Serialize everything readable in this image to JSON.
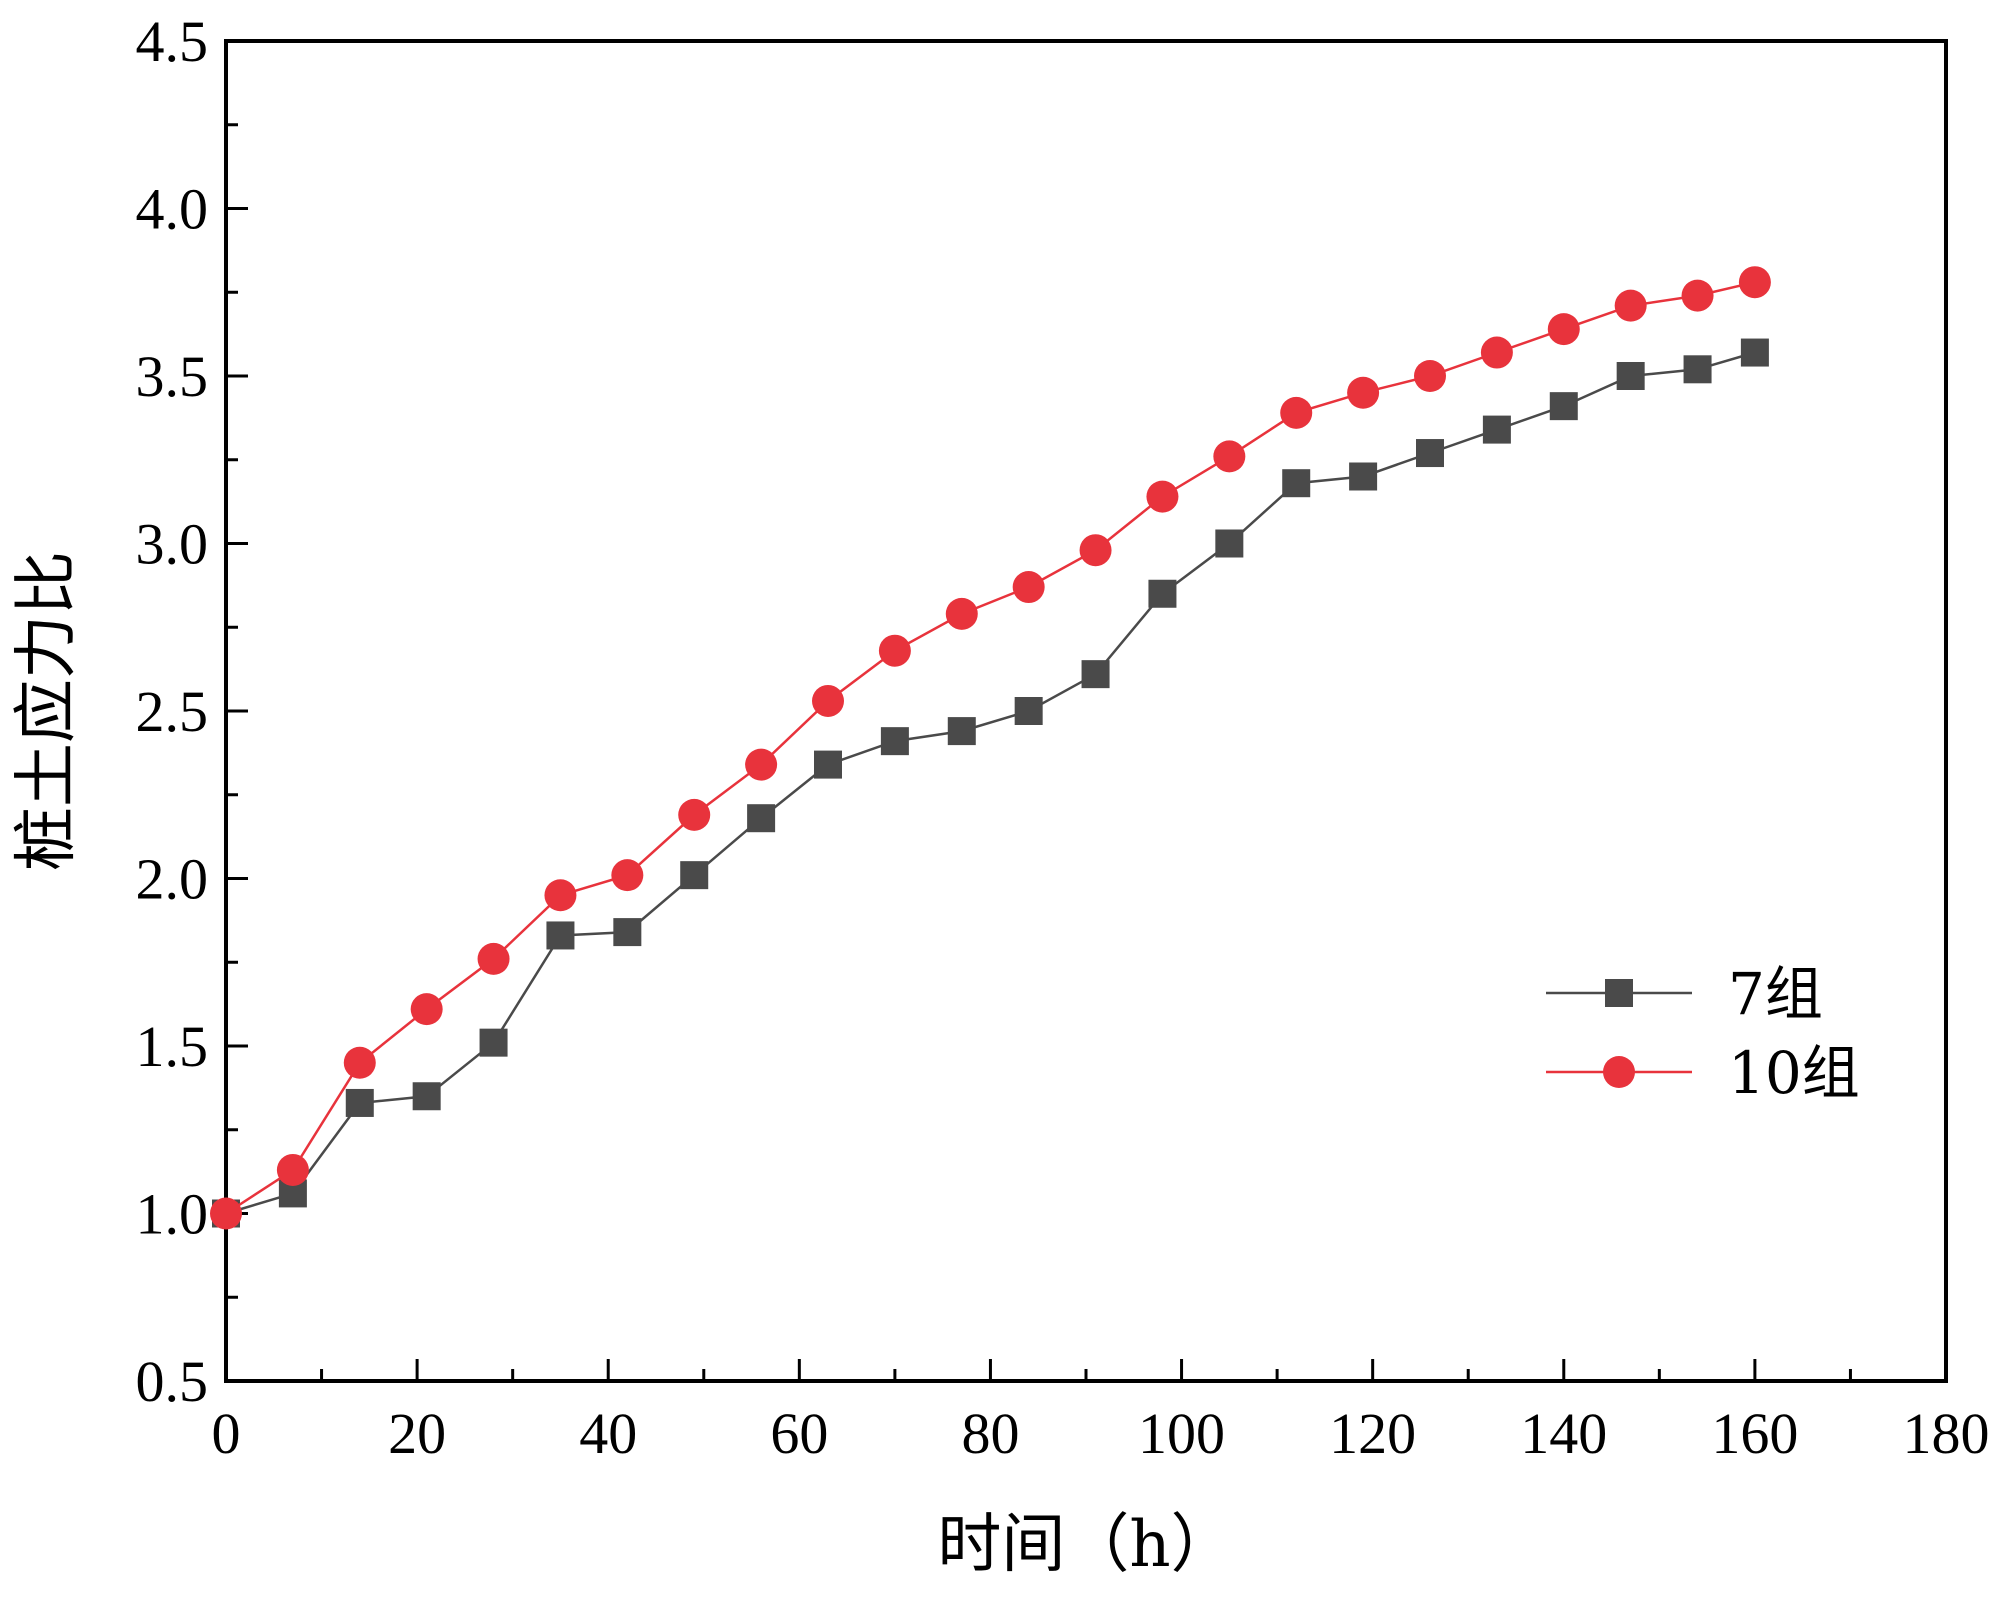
{
  "chart_data": {
    "type": "line",
    "title": "",
    "xlabel": "时间（h）",
    "ylabel": "桩土应力比",
    "xlim": [
      0,
      180
    ],
    "ylim": [
      0.5,
      4.5
    ],
    "x_ticks": [
      "0",
      "20",
      "40",
      "60",
      "80",
      "100",
      "120",
      "140",
      "160",
      "180"
    ],
    "y_ticks": [
      "0.5",
      "1.0",
      "1.5",
      "2.0",
      "2.5",
      "3.0",
      "3.5",
      "4.0",
      "4.5"
    ],
    "x_tick_values": [
      0,
      20,
      40,
      60,
      80,
      100,
      120,
      140,
      160,
      180
    ],
    "y_tick_values": [
      0.5,
      1.0,
      1.5,
      2.0,
      2.5,
      3.0,
      3.5,
      4.0,
      4.5
    ],
    "grid": false,
    "legend_position": "right",
    "series": [
      {
        "name": "7组",
        "color": "#4a4a4a",
        "marker": "square",
        "x": [
          0,
          7,
          14,
          21,
          28,
          35,
          42,
          49,
          56,
          63,
          70,
          77,
          84,
          91,
          98,
          105,
          112,
          119,
          126,
          133,
          140,
          147,
          154,
          160
        ],
        "y": [
          1.0,
          1.06,
          1.33,
          1.35,
          1.51,
          1.83,
          1.84,
          2.01,
          2.18,
          2.34,
          2.41,
          2.44,
          2.5,
          2.61,
          2.85,
          3.0,
          3.18,
          3.2,
          3.27,
          3.34,
          3.41,
          3.5,
          3.52,
          3.57
        ]
      },
      {
        "name": "10组",
        "color": "#e8333c",
        "marker": "circle",
        "x": [
          0,
          7,
          14,
          21,
          28,
          35,
          42,
          49,
          56,
          63,
          70,
          77,
          84,
          91,
          98,
          105,
          112,
          119,
          126,
          133,
          140,
          147,
          154,
          160
        ],
        "y": [
          1.0,
          1.13,
          1.45,
          1.61,
          1.76,
          1.95,
          2.01,
          2.19,
          2.34,
          2.53,
          2.68,
          2.79,
          2.87,
          2.98,
          3.14,
          3.26,
          3.39,
          3.45,
          3.5,
          3.57,
          3.64,
          3.71,
          3.74,
          3.78
        ]
      }
    ]
  }
}
